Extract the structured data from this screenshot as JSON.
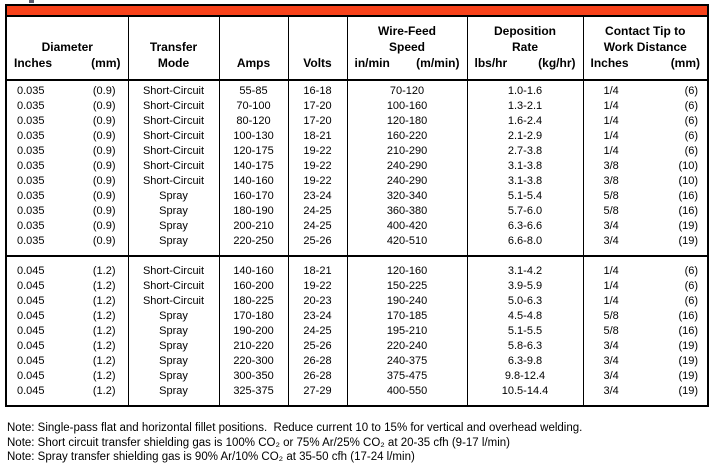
{
  "banner": {
    "color": "#F8421A"
  },
  "table": {
    "header": {
      "diameter": {
        "title": "Diameter",
        "unit_left": "Inches",
        "unit_right": "(mm)"
      },
      "transfer": {
        "line1": "Transfer",
        "line2": "Mode"
      },
      "amps": {
        "label": "Amps"
      },
      "volts": {
        "label": "Volts"
      },
      "wire_feed": {
        "line1": "Wire-Feed",
        "line2": "Speed",
        "unit_left": "in/min",
        "unit_right": "(m/min)"
      },
      "deposition": {
        "line1": "Deposition",
        "line2": "Rate",
        "unit_left": "lbs/hr",
        "unit_right": "(kg/hr)"
      },
      "contact_tip": {
        "line1": "Contact Tip to",
        "line2": "Work Distance",
        "unit_left": "Inches",
        "unit_right": "(mm)"
      }
    },
    "sections": [
      {
        "label": "0.035 in (0.9 mm)",
        "rows": [
          {
            "diameter_in": "0.035",
            "diameter_mm": "(0.9)",
            "transfer_mode": "Short-Circuit",
            "amps": "55-85",
            "volts": "16-18",
            "wire_feed": "70-120",
            "deposition": "1.0-1.6",
            "tip_in": "1/4",
            "tip_mm": "(6)"
          },
          {
            "diameter_in": "0.035",
            "diameter_mm": "(0.9)",
            "transfer_mode": "Short-Circuit",
            "amps": "70-100",
            "volts": "17-20",
            "wire_feed": "100-160",
            "deposition": "1.3-2.1",
            "tip_in": "1/4",
            "tip_mm": "(6)"
          },
          {
            "diameter_in": "0.035",
            "diameter_mm": "(0.9)",
            "transfer_mode": "Short-Circuit",
            "amps": "80-120",
            "volts": "17-20",
            "wire_feed": "120-180",
            "deposition": "1.6-2.4",
            "tip_in": "1/4",
            "tip_mm": "(6)"
          },
          {
            "diameter_in": "0.035",
            "diameter_mm": "(0.9)",
            "transfer_mode": "Short-Circuit",
            "amps": "100-130",
            "volts": "18-21",
            "wire_feed": "160-220",
            "deposition": "2.1-2.9",
            "tip_in": "1/4",
            "tip_mm": "(6)"
          },
          {
            "diameter_in": "0.035",
            "diameter_mm": "(0.9)",
            "transfer_mode": "Short-Circuit",
            "amps": "120-175",
            "volts": "19-22",
            "wire_feed": "210-290",
            "deposition": "2.7-3.8",
            "tip_in": "1/4",
            "tip_mm": "(6)"
          },
          {
            "diameter_in": "0.035",
            "diameter_mm": "(0.9)",
            "transfer_mode": "Short-Circuit",
            "amps": "140-175",
            "volts": "19-22",
            "wire_feed": "240-290",
            "deposition": "3.1-3.8",
            "tip_in": "3/8",
            "tip_mm": "(10)"
          },
          {
            "diameter_in": "0.035",
            "diameter_mm": "(0.9)",
            "transfer_mode": "Short-Circuit",
            "amps": "140-160",
            "volts": "19-22",
            "wire_feed": "240-290",
            "deposition": "3.1-3.8",
            "tip_in": "3/8",
            "tip_mm": "(10)"
          },
          {
            "diameter_in": "0.035",
            "diameter_mm": "(0.9)",
            "transfer_mode": "Spray",
            "amps": "160-170",
            "volts": "23-24",
            "wire_feed": "320-340",
            "deposition": "5.1-5.4",
            "tip_in": "5/8",
            "tip_mm": "(16)"
          },
          {
            "diameter_in": "0.035",
            "diameter_mm": "(0.9)",
            "transfer_mode": "Spray",
            "amps": "180-190",
            "volts": "24-25",
            "wire_feed": "360-380",
            "deposition": "5.7-6.0",
            "tip_in": "5/8",
            "tip_mm": "(16)"
          },
          {
            "diameter_in": "0.035",
            "diameter_mm": "(0.9)",
            "transfer_mode": "Spray",
            "amps": "200-210",
            "volts": "24-25",
            "wire_feed": "400-420",
            "deposition": "6.3-6.6",
            "tip_in": "3/4",
            "tip_mm": "(19)"
          },
          {
            "diameter_in": "0.035",
            "diameter_mm": "(0.9)",
            "transfer_mode": "Spray",
            "amps": "220-250",
            "volts": "25-26",
            "wire_feed": "420-510",
            "deposition": "6.6-8.0",
            "tip_in": "3/4",
            "tip_mm": "(19)"
          }
        ]
      },
      {
        "label": "0.045 in (1.2 mm)",
        "rows": [
          {
            "diameter_in": "0.045",
            "diameter_mm": "(1.2)",
            "transfer_mode": "Short-Circuit",
            "amps": "140-160",
            "volts": "18-21",
            "wire_feed": "120-160",
            "deposition": "3.1-4.2",
            "tip_in": "1/4",
            "tip_mm": "(6)"
          },
          {
            "diameter_in": "0.045",
            "diameter_mm": "(1.2)",
            "transfer_mode": "Short-Circuit",
            "amps": "160-200",
            "volts": "19-22",
            "wire_feed": "150-225",
            "deposition": "3.9-5.9",
            "tip_in": "1/4",
            "tip_mm": "(6)"
          },
          {
            "diameter_in": "0.045",
            "diameter_mm": "(1.2)",
            "transfer_mode": "Short-Circuit",
            "amps": "180-225",
            "volts": "20-23",
            "wire_feed": "190-240",
            "deposition": "5.0-6.3",
            "tip_in": "1/4",
            "tip_mm": "(6)"
          },
          {
            "diameter_in": "0.045",
            "diameter_mm": "(1.2)",
            "transfer_mode": "Spray",
            "amps": "170-180",
            "volts": "23-24",
            "wire_feed": "170-185",
            "deposition": "4.5-4.8",
            "tip_in": "5/8",
            "tip_mm": "(16)"
          },
          {
            "diameter_in": "0.045",
            "diameter_mm": "(1.2)",
            "transfer_mode": "Spray",
            "amps": "190-200",
            "volts": "24-25",
            "wire_feed": "195-210",
            "deposition": "5.1-5.5",
            "tip_in": "5/8",
            "tip_mm": "(16)"
          },
          {
            "diameter_in": "0.045",
            "diameter_mm": "(1.2)",
            "transfer_mode": "Spray",
            "amps": "210-220",
            "volts": "25-26",
            "wire_feed": "220-240",
            "deposition": "5.8-6.3",
            "tip_in": "3/4",
            "tip_mm": "(19)"
          },
          {
            "diameter_in": "0.045",
            "diameter_mm": "(1.2)",
            "transfer_mode": "Spray",
            "amps": "220-300",
            "volts": "26-28",
            "wire_feed": "240-375",
            "deposition": "6.3-9.8",
            "tip_in": "3/4",
            "tip_mm": "(19)"
          },
          {
            "diameter_in": "0.045",
            "diameter_mm": "(1.2)",
            "transfer_mode": "Spray",
            "amps": "300-350",
            "volts": "26-28",
            "wire_feed": "375-475",
            "deposition": "9.8-12.4",
            "tip_in": "3/4",
            "tip_mm": "(19)"
          },
          {
            "diameter_in": "0.045",
            "diameter_mm": "(1.2)",
            "transfer_mode": "Spray",
            "amps": "325-375",
            "volts": "27-29",
            "wire_feed": "400-550",
            "deposition": "10.5-14.4",
            "tip_in": "3/4",
            "tip_mm": "(19)"
          }
        ]
      }
    ]
  },
  "notes": [
    "Note: Single-pass flat and horizontal fillet positions.  Reduce current 10 to 15% for vertical and overhead welding.",
    "Note: Short circuit transfer shielding gas is 100% CO₂ or 75% Ar/25% CO₂ at 20-35 cfh (9-17 l/min)",
    "Note: Spray transfer shielding gas is 90% Ar/10% CO₂ at 35-50 cfh (17-24 l/min)"
  ]
}
